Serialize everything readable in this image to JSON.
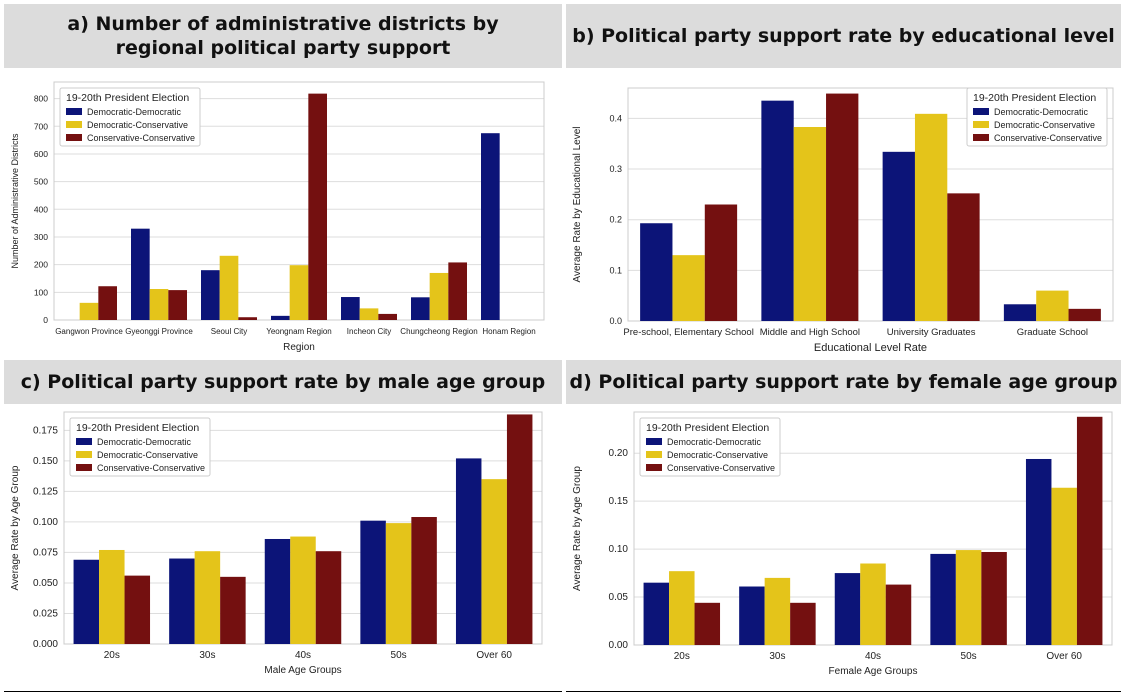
{
  "colors": {
    "dd": "#0c1478",
    "dc": "#e4c41a",
    "cc": "#741010",
    "grid": "#dddddd"
  },
  "legend_title": "19-20th President Election",
  "chart_data": [
    {
      "type": "bar",
      "title": "a) Number of administrative districts by regional political party support",
      "xlabel": "Region",
      "ylabel": "Number of Administrative Districts",
      "categories": [
        "Gangwon Province",
        "Gyeonggi Province",
        "Seoul City",
        "Yeongnam Region",
        "Incheon City",
        "Chungcheong Region",
        "Honam Region"
      ],
      "ylim": [
        0,
        860
      ],
      "yticks": [
        "0",
        "100",
        "200",
        "300",
        "400",
        "500",
        "600",
        "700",
        "800"
      ],
      "legend_position": "top-left",
      "legend_title": "19-20th President Election",
      "series": [
        {
          "name": "Democratic-Democratic",
          "values": [
            0,
            330,
            180,
            15,
            83,
            82,
            675
          ]
        },
        {
          "name": "Democratic-Conservative",
          "values": [
            62,
            112,
            232,
            198,
            42,
            170,
            0
          ]
        },
        {
          "name": "Conservative-Conservative",
          "values": [
            122,
            108,
            10,
            818,
            22,
            208,
            0
          ]
        }
      ]
    },
    {
      "type": "bar",
      "title": "b) Political party support rate by educational level",
      "xlabel": "Educational Level Rate",
      "ylabel": "Average Rate by Educational Level",
      "categories": [
        "Pre-school, Elementary School",
        "Middle and High School",
        "University Graduates",
        "Graduate School"
      ],
      "ylim": [
        0,
        0.46
      ],
      "yticks": [
        "0.0",
        "0.1",
        "0.2",
        "0.3",
        "0.4"
      ],
      "legend_position": "top-right",
      "legend_title": "19-20th President Election",
      "series": [
        {
          "name": "Democratic-Democratic",
          "values": [
            0.193,
            0.435,
            0.334,
            0.033
          ]
        },
        {
          "name": "Democratic-Conservative",
          "values": [
            0.13,
            0.383,
            0.409,
            0.06
          ]
        },
        {
          "name": "Conservative-Conservative",
          "values": [
            0.23,
            0.449,
            0.252,
            0.024
          ]
        }
      ]
    },
    {
      "type": "bar",
      "title": "c) Political party support rate by male age group",
      "xlabel": "Male Age Groups",
      "ylabel": "Average Rate by Age Group",
      "categories": [
        "20s",
        "30s",
        "40s",
        "50s",
        "Over 60"
      ],
      "ylim": [
        0,
        0.19
      ],
      "yticks": [
        "0.000",
        "0.025",
        "0.050",
        "0.075",
        "0.100",
        "0.125",
        "0.150",
        "0.175"
      ],
      "legend_position": "top-left",
      "legend_title": "19-20th President Election",
      "series": [
        {
          "name": "Democratic-Democratic",
          "values": [
            0.069,
            0.07,
            0.086,
            0.101,
            0.152
          ]
        },
        {
          "name": "Democratic-Conservative",
          "values": [
            0.077,
            0.076,
            0.088,
            0.099,
            0.135
          ]
        },
        {
          "name": "Conservative-Conservative",
          "values": [
            0.056,
            0.055,
            0.076,
            0.104,
            0.188
          ]
        }
      ]
    },
    {
      "type": "bar",
      "title": "d) Political party support rate by female age group",
      "xlabel": "Female Age Groups",
      "ylabel": "Average Rate by Age Group",
      "categories": [
        "20s",
        "30s",
        "40s",
        "50s",
        "Over 60"
      ],
      "ylim": [
        0,
        0.243
      ],
      "yticks": [
        "0.00",
        "0.05",
        "0.10",
        "0.15",
        "0.20"
      ],
      "legend_position": "top-left",
      "legend_title": "19-20th President Election",
      "series": [
        {
          "name": "Democratic-Democratic",
          "values": [
            0.065,
            0.061,
            0.075,
            0.095,
            0.194
          ]
        },
        {
          "name": "Democratic-Conservative",
          "values": [
            0.077,
            0.07,
            0.085,
            0.099,
            0.164
          ]
        },
        {
          "name": "Conservative-Conservative",
          "values": [
            0.044,
            0.044,
            0.063,
            0.097,
            0.238
          ]
        }
      ]
    }
  ]
}
